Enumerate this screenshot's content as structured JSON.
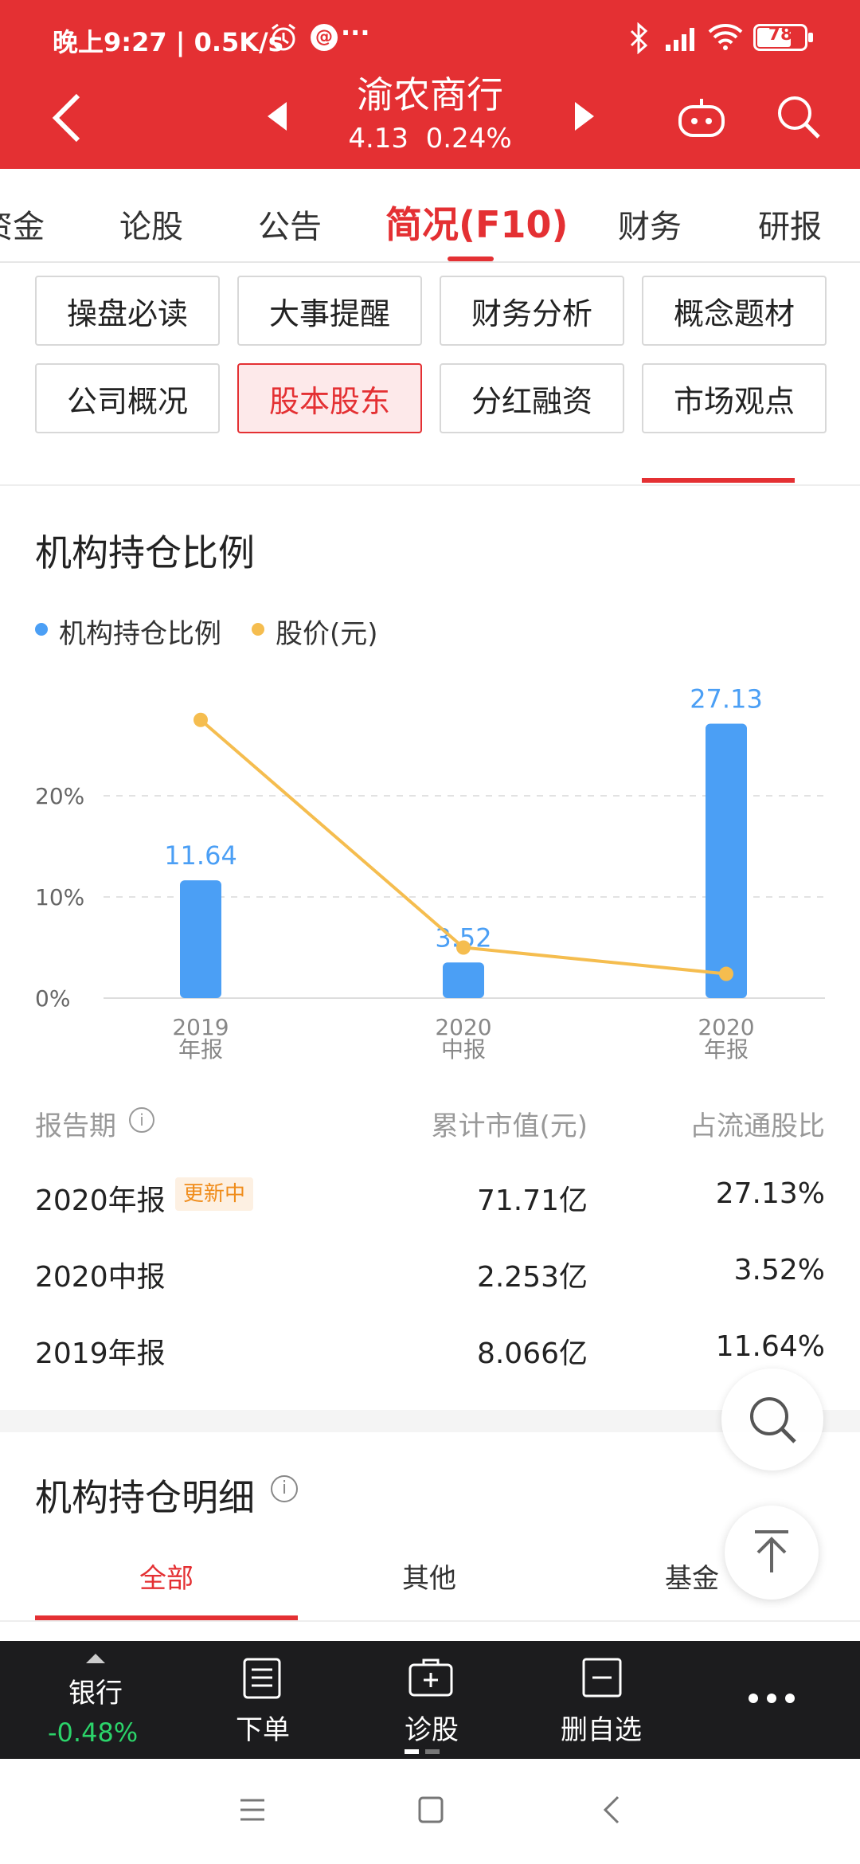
{
  "status_bar": {
    "time_speed": "晚上9:27 | 0.5K/s",
    "battery": "78",
    "dots": "···"
  },
  "header": {
    "stock_name": "渝农商行",
    "price": "4.13",
    "change": "0.24%"
  },
  "tabs": [
    "资金",
    "论股",
    "公告",
    "简况(F10)",
    "财务",
    "研报"
  ],
  "active_tab": "简况(F10)",
  "subtabs": [
    [
      "操盘必读",
      "大事提醒",
      "财务分析",
      "概念题材"
    ],
    [
      "公司概况",
      "股本股东",
      "分红融资",
      "市场观点"
    ]
  ],
  "active_subtab": "股本股东",
  "section1": {
    "title": "机构持仓比例",
    "legend": [
      "机构持仓比例",
      "股价(元)"
    ]
  },
  "chart_data": {
    "type": "bar",
    "categories": [
      "2019\n年报",
      "2020\n中报",
      "2020\n年报"
    ],
    "category_lines": [
      [
        "2019",
        "年报"
      ],
      [
        "2020",
        "中报"
      ],
      [
        "2020",
        "年报"
      ]
    ],
    "series": [
      {
        "name": "机构持仓比例",
        "type": "bar",
        "values": [
          11.64,
          3.52,
          27.13
        ],
        "color": "#4b9ff5"
      },
      {
        "name": "股价(元)",
        "type": "line",
        "values": [
          27.5,
          5.0,
          2.4
        ],
        "color": "#f5bd4f"
      }
    ],
    "data_labels": [
      "11.64",
      "3.52",
      "27.13"
    ],
    "yticks": [
      "0%",
      "10%",
      "20%"
    ],
    "ytick_values": [
      0,
      10,
      20
    ],
    "ylim": [
      0,
      30
    ],
    "grid": true,
    "legend": "top-left"
  },
  "table": {
    "headers": [
      "报告期",
      "累计市值(元)",
      "占流通股比"
    ],
    "rows": [
      {
        "period": "2020年报",
        "badge": "更新中",
        "value": "71.71亿",
        "ratio": "27.13%"
      },
      {
        "period": "2020中报",
        "badge": "",
        "value": "2.253亿",
        "ratio": "3.52%"
      },
      {
        "period": "2019年报",
        "badge": "",
        "value": "8.066亿",
        "ratio": "11.64%"
      }
    ]
  },
  "section2": {
    "title": "机构持仓明细",
    "tabs": [
      "全部",
      "其他",
      "基金"
    ],
    "active": "全部"
  },
  "bottom_bar": {
    "sector_name": "银行",
    "sector_change": "-0.48%",
    "items": [
      "下单",
      "诊股",
      "删自选"
    ]
  },
  "colors": {
    "brand_red": "#e43033",
    "bar_blue": "#4b9ff5",
    "line_yellow": "#f5bd4f",
    "down_green": "#2bd46a"
  }
}
